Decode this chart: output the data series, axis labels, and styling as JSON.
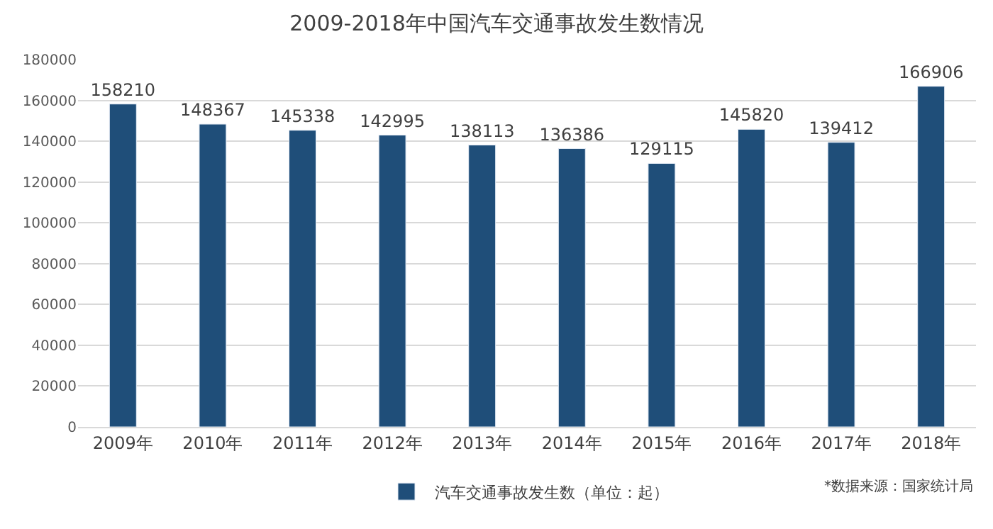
{
  "chart_data": {
    "type": "bar",
    "title": "2009-2018年中国汽车交通事故发生数情况",
    "categories": [
      "2009年",
      "2010年",
      "2011年",
      "2012年",
      "2013年",
      "2014年",
      "2015年",
      "2016年",
      "2017年",
      "2018年"
    ],
    "series": [
      {
        "name": "汽车交通事故发生数（单位：起）",
        "color": "#1f4e79",
        "values": [
          158210,
          148367,
          145338,
          142995,
          138113,
          136386,
          129115,
          145820,
          139412,
          166906
        ]
      }
    ],
    "ylim": [
      0,
      180000
    ],
    "yticks": [
      0,
      20000,
      40000,
      60000,
      80000,
      100000,
      120000,
      140000,
      160000,
      180000
    ],
    "grid": "y",
    "legend": "bottom",
    "data_labels": true,
    "annotations": [
      "*数据来源：国家统计局"
    ]
  }
}
